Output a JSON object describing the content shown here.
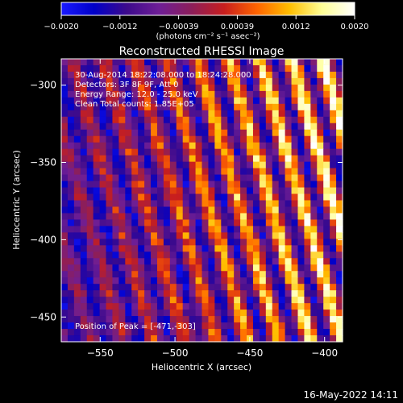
{
  "chart_data": {
    "type": "heatmap",
    "title": "Reconstructed RHESSI Image",
    "xlabel": "Heliocentric X (arcsec)",
    "ylabel": "Heliocentric Y (arcsec)",
    "xlim": [
      -576,
      -388
    ],
    "ylim": [
      -466,
      -283
    ],
    "x_ticks": [
      -550,
      -500,
      -450,
      -400
    ],
    "y_ticks": [
      -300,
      -350,
      -400,
      -450
    ],
    "x_tick_labels": [
      "−550",
      "−500",
      "−450",
      "−400"
    ],
    "y_tick_labels": [
      "−300",
      "−350",
      "−400",
      "−450"
    ],
    "colorbar": {
      "range": [
        -0.002,
        0.002
      ],
      "tick_labels": [
        "−0.0020",
        "−0.0012",
        "−0.00039",
        "0.00039",
        "0.0012",
        "0.0020"
      ],
      "unit_label": "(photons cm⁻² s⁻¹ asec⁻²)",
      "colors": [
        "#1a1aff",
        "#0000c8",
        "#3c0a8c",
        "#6e1e96",
        "#8c1e5a",
        "#c81e1e",
        "#ff6400",
        "#ffbe00",
        "#ffff96",
        "#ffffff"
      ]
    },
    "annotations": [
      "30-Aug-2014 18:22:08.000 to 18:24:28.000",
      "Detectors: 3F 8F 9F, Att 0",
      "Energy Range: 12.0 - 25.0 keV",
      "Clean    Total counts: 1.85E+05"
    ],
    "peak_label": "Position of Peak = [-471,-303]",
    "peak": [
      -471,
      -303
    ],
    "grid": false
  },
  "footer_date": "16-May-2022 14:11"
}
